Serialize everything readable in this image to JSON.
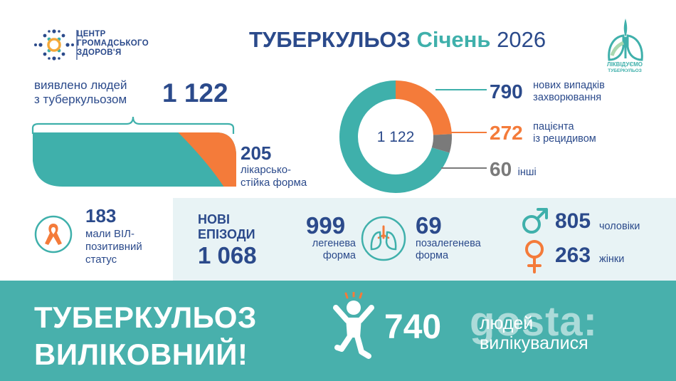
{
  "header": {
    "logo_left": {
      "lines": [
        "ЦЕНТР",
        "ГРОМАДСЬКОГО",
        "ЗДОРОВ'Я"
      ],
      "icon": "center-public-health-logo"
    },
    "title_part1": "ТУБЕРКУЛЬОЗ",
    "title_part2": "Січень",
    "title_part3": "2026",
    "logo_right": {
      "line1": "ЛІКВІДУЄМО",
      "line2": "ТУБЕРКУЛЬОЗ",
      "icon": "lungs-leaf-logo"
    }
  },
  "detected": {
    "label_line1": "виявлено людей",
    "label_line2": "з туберкульозом",
    "value": "1 122"
  },
  "resistant": {
    "value": "205",
    "label_line1": "лікарсько-",
    "label_line2": "стійка форма"
  },
  "donut": {
    "center_label": "1 122",
    "rows": [
      {
        "value": "790",
        "label_line1": "нових випадків",
        "label_line2": "захворювання",
        "color": "#3fb0ab"
      },
      {
        "value": "272",
        "label_line1": "пацієнта",
        "label_line2": "із рецидивом",
        "color": "#f47b3a"
      },
      {
        "value": "60",
        "label_line1": "інші",
        "label_line2": "",
        "color": "#7a7a7a"
      }
    ]
  },
  "hiv": {
    "value": "183",
    "label_line1": "мали ВІЛ-",
    "label_line2": "позитивний",
    "label_line3": "статус",
    "icon": "awareness-ribbon-icon"
  },
  "new_episodes": {
    "label_line1": "НОВІ",
    "label_line2": "ЕПІЗОДИ",
    "value": "1 068"
  },
  "pulmonary": {
    "value": "999",
    "label_line1": "легенева",
    "label_line2": "форма"
  },
  "extrapulmonary": {
    "value": "69",
    "label_line1": "позалегенева",
    "label_line2": "форма",
    "icon": "lungs-icon"
  },
  "gender": {
    "male_value": "805",
    "male_label": "чоловіки",
    "male_icon": "male-symbol-icon",
    "female_value": "263",
    "female_label": "жінки",
    "female_icon": "female-symbol-icon"
  },
  "footer": {
    "slogan_line1": "ТУБЕРКУЛЬОЗ",
    "slogan_line2": "ВИЛІКОВНИЙ!",
    "cured_value": "740",
    "cured_label_line1": "людей",
    "cured_label_line2": "вилікувалися",
    "kid_icon": "happy-child-icon",
    "watermark": "gosta:"
  },
  "colors": {
    "navy": "#2b4a8b",
    "teal": "#3fb0ab",
    "orange": "#f47b3a",
    "gray": "#7a7a7a",
    "band": "#e8f3f5",
    "footer": "#48b0ac"
  },
  "chart_data": [
    {
      "type": "pie",
      "title": "",
      "center_label": "1 122",
      "categories": [
        "нових випадків захворювання",
        "пацієнта із рецидивом",
        "інші"
      ],
      "values": [
        790,
        272,
        60
      ],
      "colors": [
        "#3fb0ab",
        "#f47b3a",
        "#7a7a7a"
      ]
    },
    {
      "type": "bar",
      "title": "",
      "categories": [
        "виявлено людей з туберкульозом",
        "лікарсько-стійка форма"
      ],
      "values": [
        1122,
        205
      ],
      "colors": [
        "#3fb0ab",
        "#f47b3a"
      ]
    }
  ]
}
